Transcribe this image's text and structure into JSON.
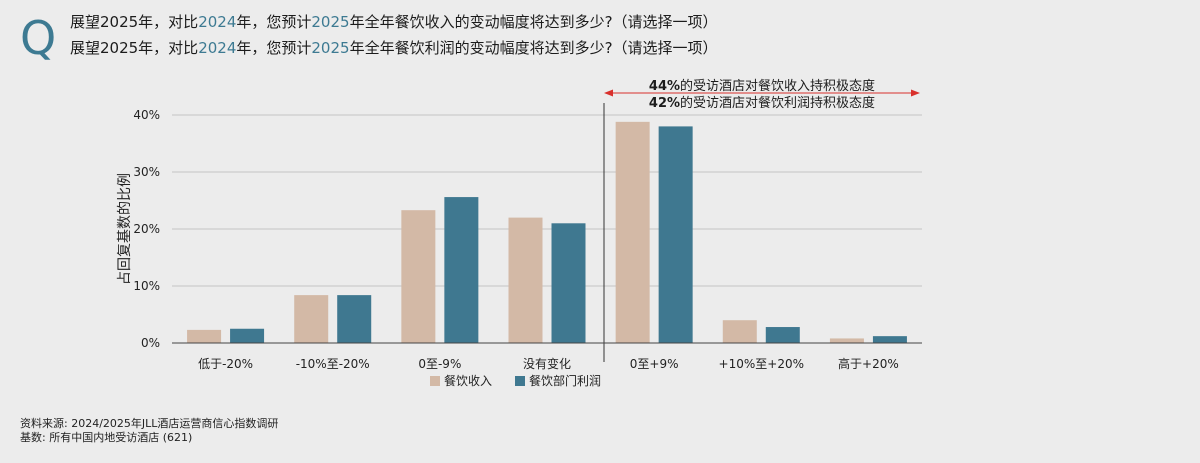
{
  "q_mark": "Q",
  "question_1": {
    "p1": "展望2025年，对比",
    "y1": "2024",
    "p2": "年，您预计",
    "y2": "2025",
    "p3": "年全年餐饮收入的变动幅度将达到多少?（请选择一项）"
  },
  "question_2": {
    "p1": "展望2025年，对比",
    "y1": "2024",
    "p2": "年，您预计",
    "y2": "2025",
    "p3": "年全年餐饮利润的变动幅度将达到多少?（请选择一项）"
  },
  "annotation": {
    "line1_bold": "44%",
    "line1_rest": "的受访酒店对餐饮收入持积极态度",
    "line2_bold": "42%",
    "line2_rest": "的受访酒店对餐饮利润持积极态度"
  },
  "chart_data": {
    "type": "bar",
    "categories": [
      "低于-20%",
      "-10%至-20%",
      "0至-9%",
      "没有变化",
      "0至+9%",
      "+10%至+20%",
      "高于+20%"
    ],
    "series": [
      {
        "name": "餐饮收入",
        "color": "#d3b9a6",
        "values": [
          2.3,
          8.4,
          23.3,
          22.0,
          38.8,
          4.0,
          0.8
        ]
      },
      {
        "name": "餐饮部门利润",
        "color": "#3f7890",
        "values": [
          2.5,
          8.4,
          25.6,
          21.0,
          38.0,
          2.8,
          1.2
        ]
      }
    ],
    "ylabel": "占回复基数的比例",
    "ylim": [
      0,
      40
    ],
    "yticks": [
      0,
      10,
      20,
      30,
      40
    ],
    "ytick_labels": [
      "0%",
      "10%",
      "20%",
      "30%",
      "40%"
    ],
    "grid": true,
    "legend": "bottom-center"
  },
  "footnotes": {
    "source": "资料来源: 2024/2025年JLL酒店运营商信心指数调研",
    "base": "基数: 所有中国内地受访酒店 (621)"
  },
  "colors": {
    "accent": "#3d7a92",
    "arrow": "#d9302c",
    "grid": "#c4c4c4"
  }
}
